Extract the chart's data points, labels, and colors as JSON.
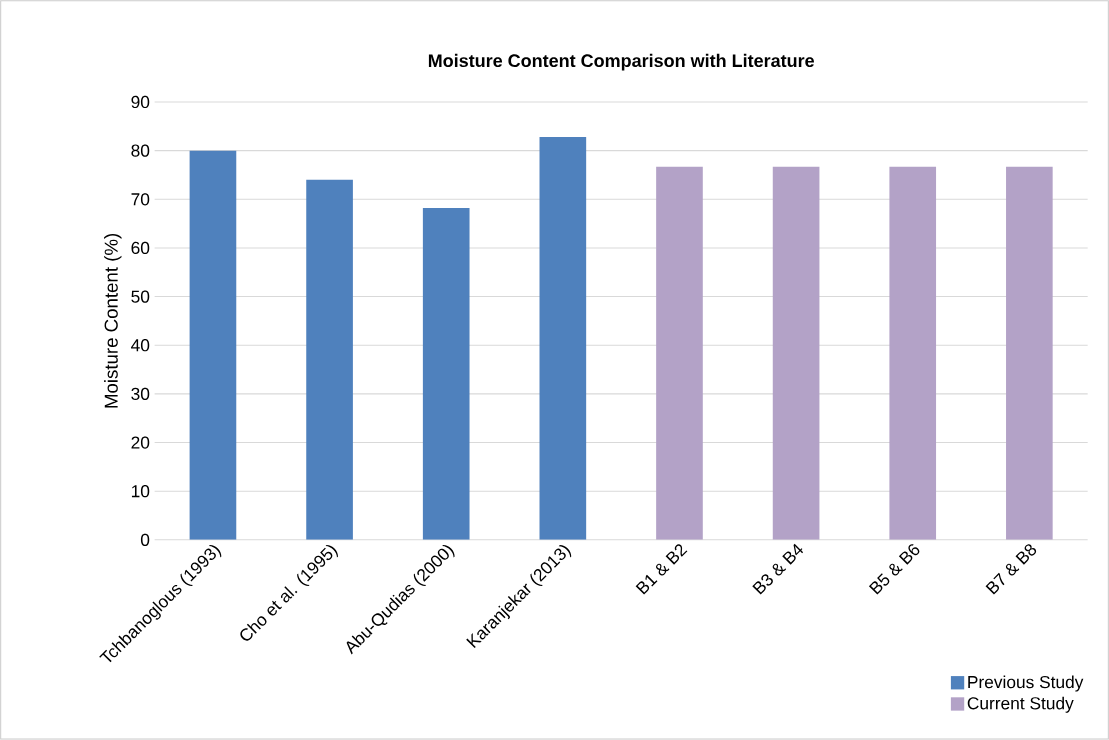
{
  "chart_data": {
    "type": "bar",
    "title": "Moisture Content Comparison with Literature",
    "ylabel": "Moisture Content (%)",
    "categories": [
      "Tchbanoglous (1993)",
      "Cho et al. (1995)",
      "Abu-Qudias (2000)",
      "Karanjekar (2013)",
      "B1 & B2",
      "B3 & B4",
      "B5 & B6",
      "B7 & B8"
    ],
    "series": [
      {
        "name": "Previous Study",
        "color": "#4f81bd",
        "values": [
          80,
          74,
          68.2,
          82.8,
          null,
          null,
          null,
          null
        ]
      },
      {
        "name": "Current Study",
        "color": "#b3a2c7",
        "values": [
          null,
          null,
          null,
          null,
          76.7,
          76.7,
          76.7,
          76.7
        ]
      }
    ],
    "ylim": [
      0,
      90
    ],
    "yticks": [
      0,
      10,
      20,
      30,
      40,
      50,
      60,
      70,
      80,
      90
    ],
    "grid": "y",
    "legend": "bottom right"
  }
}
